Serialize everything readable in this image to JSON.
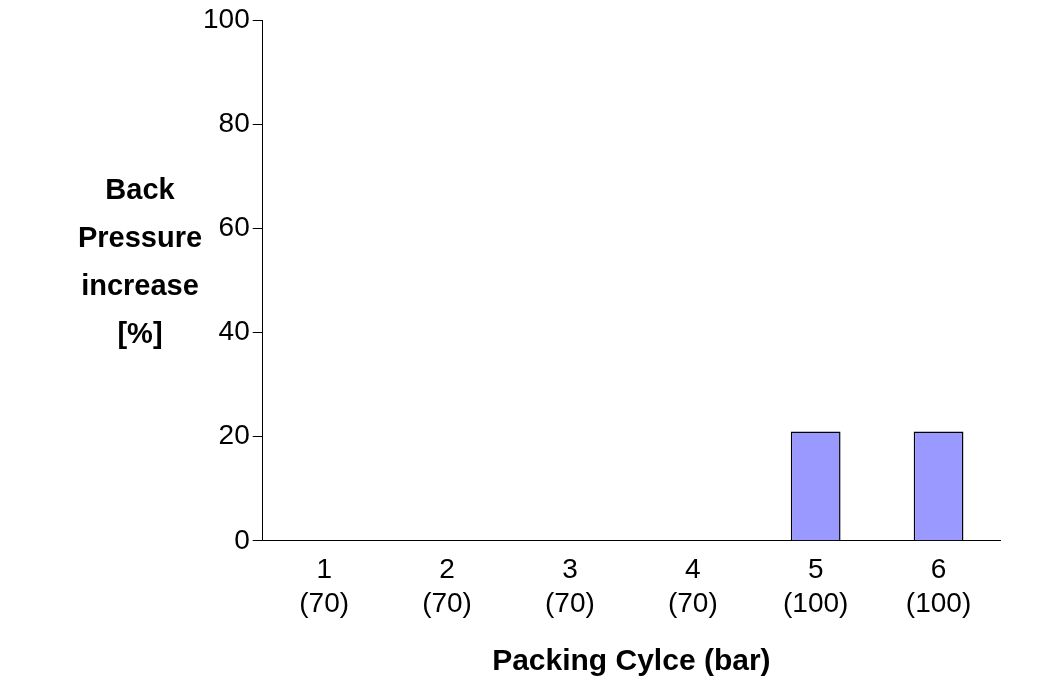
{
  "chart_data": {
    "type": "bar",
    "xlabel": "Packing Cylce (bar)",
    "ylabel": "Back Pressure increase [%]",
    "categories": [
      "1\n(70)",
      "2\n(70)",
      "3\n(70)",
      "4\n(70)",
      "5\n(100)",
      "6\n(100)"
    ],
    "values": [
      0,
      0,
      0,
      0,
      21,
      21
    ],
    "color": "#9999ff",
    "ylim": [
      0,
      100
    ],
    "yticks": [
      0,
      20,
      40,
      60,
      80,
      100
    ],
    "grid": false,
    "legend": false
  }
}
